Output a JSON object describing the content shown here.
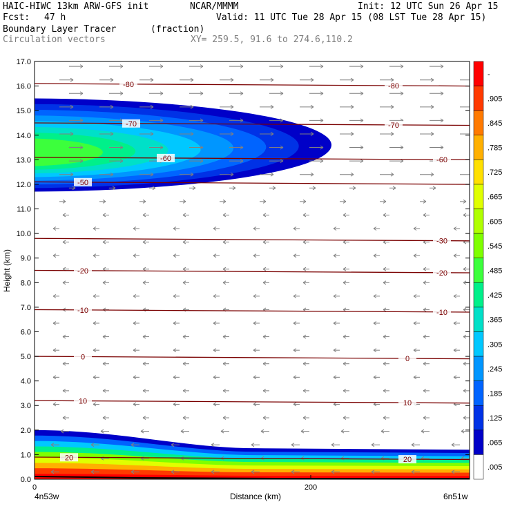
{
  "header": {
    "title_left": "HAIC-HIWC 13km ARW-GFS init",
    "org": "NCAR/MMMM",
    "init": "Init: 12 UTC Sun 26 Apr 15",
    "fcst_label": "Fcst:",
    "fcst_value": "47 h",
    "valid": "Valid: 11 UTC Tue 28 Apr 15 (08 LST Tue 28 Apr 15)",
    "field_name": "Boundary Layer Tracer",
    "field_units": "(fraction)",
    "vectors_label": "Circulation vectors",
    "xy_label": "XY= 259.5, 91.6 to 274.6,110.2"
  },
  "axes": {
    "ylabel": "Height (km)",
    "xlabel": "Distance (km)",
    "x_start_label": "4n53w",
    "x_end_label": "6n51w"
  },
  "colorbar": {
    "labels": [
      "-",
      ".905",
      ".845",
      ".785",
      ".725",
      ".665",
      ".605",
      ".545",
      ".485",
      ".425",
      ".365",
      ".305",
      ".245",
      ".185",
      ".125",
      ".065",
      ".005"
    ],
    "colors": [
      "#ff0000",
      "#ff3a00",
      "#ff7a00",
      "#ffb000",
      "#ffe000",
      "#e0ff00",
      "#b0ff00",
      "#7fff00",
      "#3cff3c",
      "#00f08a",
      "#00e0c8",
      "#00c8ff",
      "#0096ff",
      "#0064ff",
      "#0032e6",
      "#0000c8",
      "#ffffff"
    ]
  },
  "chart_data": {
    "type": "heatmap",
    "x": {
      "range": [
        0,
        315
      ],
      "ticks": [
        0,
        200
      ]
    },
    "y": {
      "range": [
        0,
        17
      ],
      "ticks": [
        0.0,
        1.0,
        2.0,
        3.0,
        4.0,
        5.0,
        6.0,
        7.0,
        8.0,
        9.0,
        10.0,
        11.0,
        12.0,
        13.0,
        14.0,
        15.0,
        16.0,
        17.0
      ]
    },
    "isotherms": [
      {
        "label": "-80",
        "height_km": 16.1,
        "label_x_km": [
          68,
          260
        ]
      },
      {
        "label": "-70",
        "height_km": 14.5,
        "label_x_km": [
          70,
          260
        ]
      },
      {
        "label": "-60",
        "height_km": 13.1,
        "label_x_km": [
          95,
          295
        ]
      },
      {
        "label": "-50",
        "height_km": 12.1,
        "label_x_km": [
          35
        ]
      },
      {
        "label": "-30",
        "height_km": 9.8,
        "label_x_km": [
          295
        ]
      },
      {
        "label": "-20",
        "height_km": 8.5,
        "label_x_km": [
          35,
          295
        ]
      },
      {
        "label": "-10",
        "height_km": 6.9,
        "label_x_km": [
          35,
          295
        ]
      },
      {
        "label": "0",
        "height_km": 5.0,
        "label_x_km": [
          35,
          270
        ]
      },
      {
        "label": "10",
        "height_km": 3.2,
        "label_x_km": [
          35,
          270
        ]
      },
      {
        "label": "20",
        "height_km": 0.9,
        "label_x_km": [
          25,
          270
        ]
      }
    ],
    "tracer_upper_plume": {
      "description_bottom_km": 11.7,
      "top_km": 15.5,
      "tip_x_km": 205,
      "core_value": 0.485,
      "edge_value": 0.065
    },
    "tracer_boundary_layer": {
      "top_km_at_x0": 2.0,
      "top_km_at_xend": 1.2,
      "max_value": 0.905
    },
    "wind_vectors": {
      "upper_direction": "right",
      "lower_direction": "left",
      "reversal_km": 11.0
    }
  }
}
